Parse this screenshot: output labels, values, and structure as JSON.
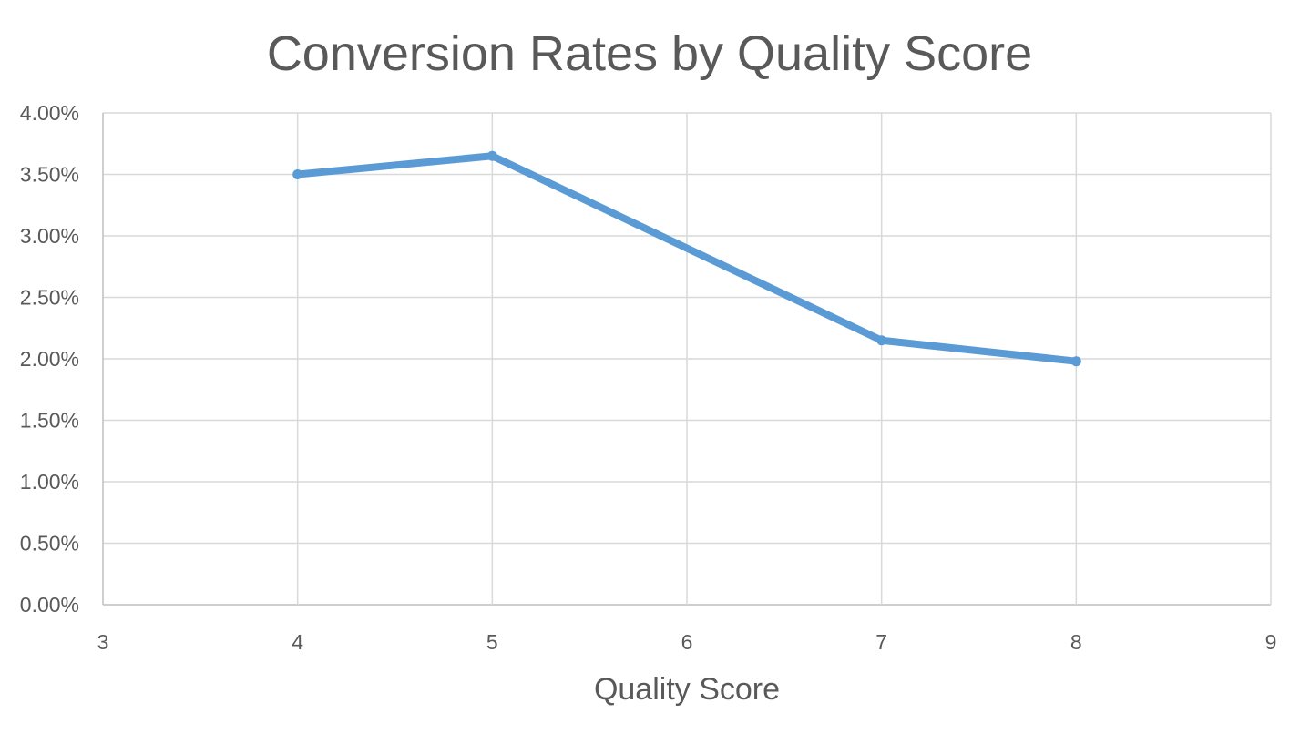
{
  "chart_data": {
    "type": "scatter",
    "title": "Conversion Rates by Quality Score",
    "xlabel": "Quality Score",
    "ylabel": "",
    "xlim": [
      3,
      9
    ],
    "ylim": [
      0,
      0.04
    ],
    "x_ticks": [
      "3",
      "4",
      "5",
      "6",
      "7",
      "8",
      "9"
    ],
    "y_ticks": [
      "0.00%",
      "0.50%",
      "1.00%",
      "1.50%",
      "2.00%",
      "2.50%",
      "3.00%",
      "3.50%",
      "4.00%"
    ],
    "grid": true,
    "legend": "none",
    "series": [
      {
        "x": [
          4,
          5,
          6,
          7,
          8
        ],
        "y": [
          0.035,
          0.0365,
          0.029,
          0.0215,
          0.0198
        ],
        "markers": [
          true,
          true,
          false,
          true,
          true
        ],
        "color": "#5b9bd5"
      }
    ]
  }
}
